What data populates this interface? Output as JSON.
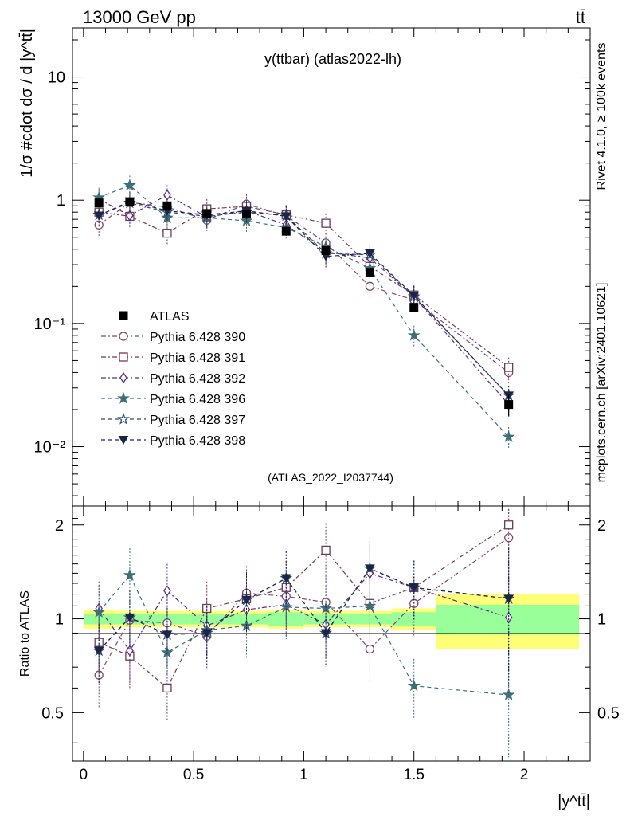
{
  "header": {
    "energy": "13000 GeV pp",
    "process": "tt̄"
  },
  "side_labels": {
    "rivet": "Rivet 4.1.0, ≥ 100k events",
    "mcplots": "mcplots.cern.ch [arXiv:2401.10621]"
  },
  "chart_data": {
    "type": "line",
    "title": "y(ttbar) (atlas2022-lh)",
    "watermark": "(ATLAS_2022_I2037744)",
    "xlabel": "|y^tt̄|",
    "ylabel_main": "1/σ #cdot dσ / d |y^tt̄|",
    "ylabel_ratio": "Ratio to ATLAS",
    "xlim": [
      -0.05,
      2.3
    ],
    "ylim_main": [
      0.0033,
      25
    ],
    "ylim_ratio": [
      0.35,
      2.3
    ],
    "x_ticks": [
      "0",
      "0.5",
      "1",
      "1.5",
      "2"
    ],
    "main_y_ticks": [
      "10",
      "1",
      "10⁻¹",
      "10⁻²"
    ],
    "ratio_y_ticks": [
      "2",
      "1",
      "0.5"
    ],
    "bins": [
      [
        0,
        0.14
      ],
      [
        0.14,
        0.28
      ],
      [
        0.28,
        0.48
      ],
      [
        0.48,
        0.64
      ],
      [
        0.64,
        0.84
      ],
      [
        0.84,
        1.0
      ],
      [
        1.0,
        1.2
      ],
      [
        1.2,
        1.4
      ],
      [
        1.4,
        1.6
      ],
      [
        1.6,
        2.25
      ]
    ],
    "x": [
      0.07,
      0.21,
      0.38,
      0.56,
      0.74,
      0.92,
      1.1,
      1.3,
      1.5,
      1.93
    ],
    "data": {
      "name": "ATLAS",
      "values": [
        0.95,
        0.97,
        0.9,
        0.78,
        0.77,
        0.56,
        0.39,
        0.26,
        0.135,
        0.022
      ],
      "band_inner": [
        0.04,
        0.04,
        0.04,
        0.04,
        0.04,
        0.05,
        0.04,
        0.04,
        0.05,
        0.11
      ],
      "band_outer": [
        0.07,
        0.06,
        0.06,
        0.06,
        0.06,
        0.07,
        0.06,
        0.06,
        0.08,
        0.2
      ]
    },
    "series": [
      {
        "name": "Pythia 6.428 390",
        "color": "#7a4a6e",
        "marker": "circle",
        "dash": "6,3,2,3",
        "values": [
          0.63,
          0.96,
          0.88,
          0.69,
          0.93,
          0.75,
          0.45,
          0.2,
          0.155,
          0.04
        ],
        "ratio": [
          0.66,
          0.99,
          0.97,
          0.88,
          1.21,
          1.18,
          1.13,
          0.8,
          1.12,
          1.82
        ]
      },
      {
        "name": "Pythia 6.428 391",
        "color": "#6e3b55",
        "marker": "square",
        "dash": "6,3,2,3",
        "values": [
          0.8,
          0.74,
          0.54,
          0.85,
          0.89,
          0.76,
          0.65,
          0.29,
          0.17,
          0.044
        ],
        "ratio": [
          0.84,
          0.76,
          0.6,
          1.08,
          1.16,
          1.26,
          1.66,
          1.12,
          1.26,
          2.0
        ]
      },
      {
        "name": "Pythia 6.428 392",
        "color": "#5a2a86",
        "marker": "diamond",
        "dash": "6,3,2,3",
        "values": [
          1.02,
          0.75,
          1.1,
          0.73,
          0.82,
          0.63,
          0.38,
          0.34,
          0.165,
          0.022
        ],
        "ratio": [
          1.08,
          0.79,
          1.23,
          0.95,
          1.07,
          1.11,
          0.96,
          1.4,
          1.26,
          1.01
        ]
      },
      {
        "name": "Pythia 6.428 396",
        "color": "#3d6e7a",
        "marker": "star",
        "dash": "5,4",
        "values": [
          1.05,
          1.32,
          0.72,
          0.72,
          0.68,
          0.6,
          0.42,
          0.28,
          0.08,
          0.012
        ],
        "ratio": [
          1.05,
          1.38,
          0.78,
          0.92,
          0.95,
          1.09,
          1.08,
          1.1,
          0.61,
          0.57
        ]
      },
      {
        "name": "Pythia 6.428 397",
        "color": "#2d4a72",
        "marker": "star-open",
        "dash": "5,4",
        "values": [
          0.76,
          0.95,
          0.8,
          0.74,
          0.8,
          0.75,
          0.37,
          0.36,
          0.165,
          0.026
        ],
        "ratio": [
          0.79,
          1.01,
          0.89,
          0.9,
          1.15,
          1.35,
          0.9,
          1.45,
          1.26,
          1.16
        ]
      },
      {
        "name": "Pythia 6.428 398",
        "color": "#1a2548",
        "marker": "triangle-down",
        "dash": "5,4",
        "values": [
          0.75,
          0.98,
          0.82,
          0.76,
          0.82,
          0.74,
          0.35,
          0.37,
          0.168,
          0.026
        ],
        "ratio": [
          0.79,
          1.01,
          0.89,
          0.9,
          1.15,
          1.35,
          0.9,
          1.45,
          1.26,
          1.16
        ]
      }
    ],
    "legend": {
      "placement": "left-middle",
      "data_label": "ATLAS"
    },
    "colors": {
      "band_inner": "#99ff99",
      "band_outer": "#ffff77",
      "data": "#000000"
    }
  }
}
